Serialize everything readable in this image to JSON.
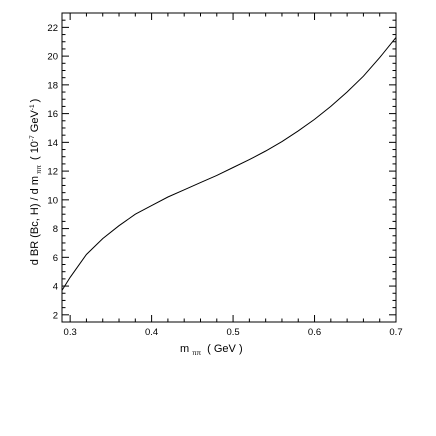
{
  "chart_data": {
    "type": "line",
    "title": "",
    "xlabel": {
      "main": "m",
      "sub": "ππ",
      "unit": "( GeV )"
    },
    "ylabel": {
      "prefix": "d BR (Bc, H) / d m",
      "sub": "ππ",
      "unit_open": "( 10",
      "unit_exp": "-7",
      "unit_mid": " GeV",
      "unit_exp2": "-1",
      "unit_close": ")"
    },
    "xlim": [
      0.29,
      0.7
    ],
    "ylim": [
      1.5,
      23
    ],
    "xticks": [
      0.3,
      0.4,
      0.5,
      0.6,
      0.7
    ],
    "xtick_labels": [
      "0.3",
      "0.4",
      "0.5",
      "0.6",
      "0.7"
    ],
    "yticks": [
      2,
      4,
      6,
      8,
      10,
      12,
      14,
      16,
      18,
      20,
      22
    ],
    "ytick_labels": [
      "2",
      "4",
      "6",
      "8",
      "10",
      "12",
      "14",
      "16",
      "18",
      "20",
      "22"
    ],
    "grid": false,
    "series": [
      {
        "x": [
          0.29,
          0.3,
          0.32,
          0.34,
          0.36,
          0.38,
          0.4,
          0.42,
          0.44,
          0.46,
          0.48,
          0.5,
          0.52,
          0.54,
          0.56,
          0.58,
          0.6,
          0.62,
          0.64,
          0.66,
          0.68,
          0.7
        ],
        "y": [
          3.7,
          4.6,
          6.2,
          7.3,
          8.2,
          9.0,
          9.6,
          10.2,
          10.7,
          11.2,
          11.7,
          12.25,
          12.8,
          13.4,
          14.05,
          14.8,
          15.6,
          16.5,
          17.5,
          18.6,
          19.9,
          21.3
        ],
        "color": "#000000"
      }
    ]
  }
}
